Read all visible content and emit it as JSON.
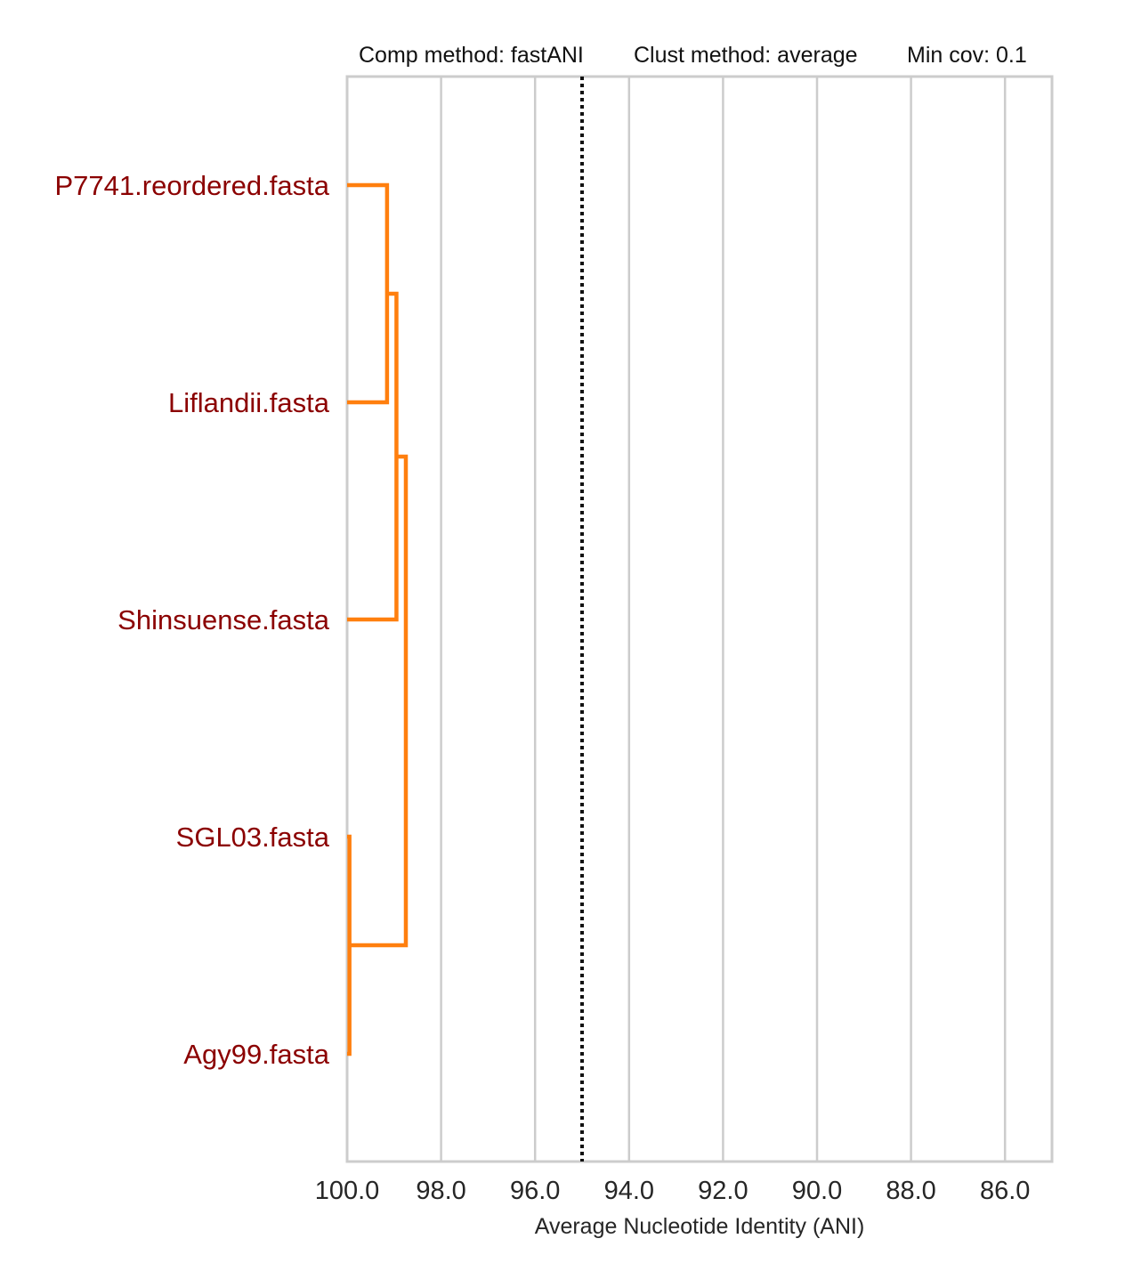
{
  "chart_data": {
    "type": "dendrogram",
    "header": {
      "comp_method": "Comp method: fastANI",
      "clust_method": "Clust method: average",
      "min_cov": "Min cov: 0.1"
    },
    "xlabel": "Average Nucleotide Identity (ANI)",
    "xlim": [
      100.0,
      85.0
    ],
    "xticks": [
      "100.0",
      "98.0",
      "96.0",
      "94.0",
      "92.0",
      "90.0",
      "88.0",
      "86.0"
    ],
    "grid": true,
    "cutoff_line": {
      "ani": 95.0,
      "style": "dotted",
      "color": "#111111"
    },
    "link_color": "#ff7f0e",
    "label_color": "#8b0000",
    "leaves": [
      "P7741.reordered.fasta",
      "Liflandii.fasta",
      "Shinsuense.fasta",
      "SGL03.fasta",
      "Agy99.fasta"
    ],
    "merges": [
      {
        "id": "m1",
        "left": "P7741.reordered.fasta",
        "right": "Liflandii.fasta",
        "ani": 99.15
      },
      {
        "id": "m2",
        "left": "m1",
        "right": "Shinsuense.fasta",
        "ani": 98.95
      },
      {
        "id": "m3",
        "left": "SGL03.fasta",
        "right": "Agy99.fasta",
        "ani": 99.95
      },
      {
        "id": "m4",
        "left": "m2",
        "right": "m3",
        "ani": 98.75
      }
    ]
  }
}
